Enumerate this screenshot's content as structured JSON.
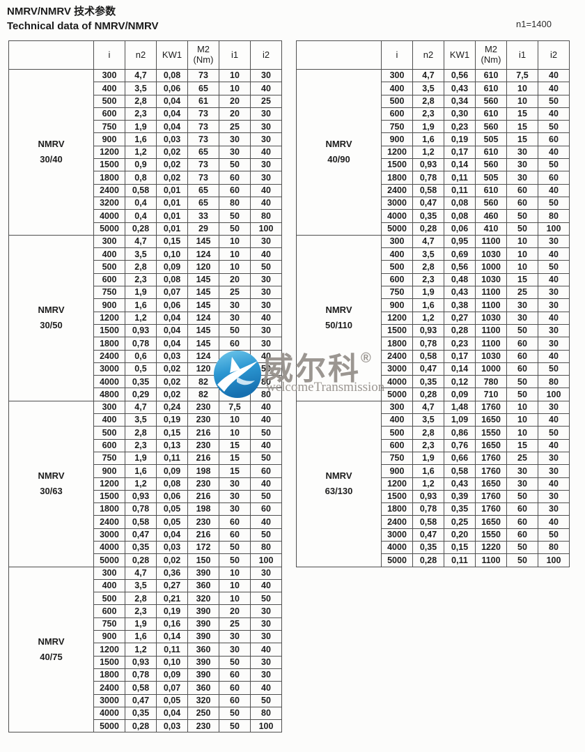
{
  "page": {
    "title_zh": "NMRV/NMRV 技术参数",
    "title_en": "Technical data of NMRV/NMRV",
    "note": "n1=1400"
  },
  "columns": [
    {
      "l1": "i"
    },
    {
      "l1": "n2"
    },
    {
      "l1": "KW1"
    },
    {
      "l1": "M2",
      "l2": "(Nm)"
    },
    {
      "l1": "i1"
    },
    {
      "l1": "i2"
    }
  ],
  "tables": [
    {
      "sections": [
        {
          "model": [
            "NMRV",
            "30/40"
          ],
          "rows": [
            [
              "300",
              "4,7",
              "0,08",
              "73",
              "10",
              "30"
            ],
            [
              "400",
              "3,5",
              "0,06",
              "65",
              "10",
              "40"
            ],
            [
              "500",
              "2,8",
              "0,04",
              "61",
              "20",
              "25"
            ],
            [
              "600",
              "2,3",
              "0,04",
              "73",
              "20",
              "30"
            ],
            [
              "750",
              "1,9",
              "0,04",
              "73",
              "25",
              "30"
            ],
            [
              "900",
              "1,6",
              "0,03",
              "73",
              "30",
              "30"
            ],
            [
              "1200",
              "1,2",
              "0,02",
              "65",
              "30",
              "40"
            ],
            [
              "1500",
              "0,9",
              "0,02",
              "73",
              "50",
              "30"
            ],
            [
              "1800",
              "0,8",
              "0,02",
              "73",
              "60",
              "30"
            ],
            [
              "2400",
              "0,58",
              "0,01",
              "65",
              "60",
              "40"
            ],
            [
              "3200",
              "0,4",
              "0,01",
              "65",
              "80",
              "40"
            ],
            [
              "4000",
              "0,4",
              "0,01",
              "33",
              "50",
              "80"
            ],
            [
              "5000",
              "0,28",
              "0,01",
              "29",
              "50",
              "100"
            ]
          ]
        },
        {
          "model": [
            "NMRV",
            "30/50"
          ],
          "rows": [
            [
              "300",
              "4,7",
              "0,15",
              "145",
              "10",
              "30"
            ],
            [
              "400",
              "3,5",
              "0,10",
              "124",
              "10",
              "40"
            ],
            [
              "500",
              "2,8",
              "0,09",
              "120",
              "10",
              "50"
            ],
            [
              "600",
              "2,3",
              "0,08",
              "145",
              "20",
              "30"
            ],
            [
              "750",
              "1,9",
              "0,07",
              "145",
              "25",
              "30"
            ],
            [
              "900",
              "1,6",
              "0,06",
              "145",
              "30",
              "30"
            ],
            [
              "1200",
              "1,2",
              "0,04",
              "124",
              "30",
              "40"
            ],
            [
              "1500",
              "0,93",
              "0,04",
              "145",
              "50",
              "30"
            ],
            [
              "1800",
              "0,78",
              "0,04",
              "145",
              "60",
              "30"
            ],
            [
              "2400",
              "0,6",
              "0,03",
              "124",
              "60",
              "40"
            ],
            [
              "3000",
              "0,5",
              "0,02",
              "120",
              "60",
              "50"
            ],
            [
              "4000",
              "0,35",
              "0,02",
              "82",
              "50",
              "80"
            ],
            [
              "4800",
              "0,29",
              "0,02",
              "82",
              "60",
              "80"
            ]
          ]
        },
        {
          "model": [
            "NMRV",
            "30/63"
          ],
          "rows": [
            [
              "300",
              "4,7",
              "0,24",
              "230",
              "7,5",
              "40"
            ],
            [
              "400",
              "3,5",
              "0,19",
              "230",
              "10",
              "40"
            ],
            [
              "500",
              "2,8",
              "0,15",
              "216",
              "10",
              "50"
            ],
            [
              "600",
              "2,3",
              "0,13",
              "230",
              "15",
              "40"
            ],
            [
              "750",
              "1,9",
              "0,11",
              "216",
              "15",
              "50"
            ],
            [
              "900",
              "1,6",
              "0,09",
              "198",
              "15",
              "60"
            ],
            [
              "1200",
              "1,2",
              "0,08",
              "230",
              "30",
              "40"
            ],
            [
              "1500",
              "0,93",
              "0,06",
              "216",
              "30",
              "50"
            ],
            [
              "1800",
              "0,78",
              "0,05",
              "198",
              "30",
              "60"
            ],
            [
              "2400",
              "0,58",
              "0,05",
              "230",
              "60",
              "40"
            ],
            [
              "3000",
              "0,47",
              "0,04",
              "216",
              "60",
              "50"
            ],
            [
              "4000",
              "0,35",
              "0,03",
              "172",
              "50",
              "80"
            ],
            [
              "5000",
              "0,28",
              "0,02",
              "150",
              "50",
              "100"
            ]
          ]
        },
        {
          "model": [
            "NMRV",
            "40/75"
          ],
          "rows": [
            [
              "300",
              "4,7",
              "0,36",
              "390",
              "10",
              "30"
            ],
            [
              "400",
              "3,5",
              "0,27",
              "360",
              "10",
              "40"
            ],
            [
              "500",
              "2,8",
              "0,21",
              "320",
              "10",
              "50"
            ],
            [
              "600",
              "2,3",
              "0,19",
              "390",
              "20",
              "30"
            ],
            [
              "750",
              "1,9",
              "0,16",
              "390",
              "25",
              "30"
            ],
            [
              "900",
              "1,6",
              "0,14",
              "390",
              "30",
              "30"
            ],
            [
              "1200",
              "1,2",
              "0,11",
              "360",
              "30",
              "40"
            ],
            [
              "1500",
              "0,93",
              "0,10",
              "390",
              "50",
              "30"
            ],
            [
              "1800",
              "0,78",
              "0,09",
              "390",
              "60",
              "30"
            ],
            [
              "2400",
              "0,58",
              "0,07",
              "360",
              "60",
              "40"
            ],
            [
              "3000",
              "0,47",
              "0,05",
              "320",
              "60",
              "50"
            ],
            [
              "4000",
              "0,35",
              "0,04",
              "250",
              "50",
              "80"
            ],
            [
              "5000",
              "0,28",
              "0,03",
              "230",
              "50",
              "100"
            ]
          ]
        }
      ]
    },
    {
      "sections": [
        {
          "model": [
            "NMRV",
            "40/90"
          ],
          "rows": [
            [
              "300",
              "4,7",
              "0,56",
              "610",
              "7,5",
              "40"
            ],
            [
              "400",
              "3,5",
              "0,43",
              "610",
              "10",
              "40"
            ],
            [
              "500",
              "2,8",
              "0,34",
              "560",
              "10",
              "50"
            ],
            [
              "600",
              "2,3",
              "0,30",
              "610",
              "15",
              "40"
            ],
            [
              "750",
              "1,9",
              "0,23",
              "560",
              "15",
              "50"
            ],
            [
              "900",
              "1,6",
              "0,19",
              "505",
              "15",
              "60"
            ],
            [
              "1200",
              "1,2",
              "0,17",
              "610",
              "30",
              "40"
            ],
            [
              "1500",
              "0,93",
              "0,14",
              "560",
              "30",
              "50"
            ],
            [
              "1800",
              "0,78",
              "0,11",
              "505",
              "30",
              "60"
            ],
            [
              "2400",
              "0,58",
              "0,11",
              "610",
              "60",
              "40"
            ],
            [
              "3000",
              "0,47",
              "0,08",
              "560",
              "60",
              "50"
            ],
            [
              "4000",
              "0,35",
              "0,08",
              "460",
              "50",
              "80"
            ],
            [
              "5000",
              "0,28",
              "0,06",
              "410",
              "50",
              "100"
            ]
          ]
        },
        {
          "model": [
            "NMRV",
            "50/110"
          ],
          "rows": [
            [
              "300",
              "4,7",
              "0,95",
              "1100",
              "10",
              "30"
            ],
            [
              "400",
              "3,5",
              "0,69",
              "1030",
              "10",
              "40"
            ],
            [
              "500",
              "2,8",
              "0,56",
              "1000",
              "10",
              "50"
            ],
            [
              "600",
              "2,3",
              "0,48",
              "1030",
              "15",
              "40"
            ],
            [
              "750",
              "1,9",
              "0,43",
              "1100",
              "25",
              "30"
            ],
            [
              "900",
              "1,6",
              "0,38",
              "1100",
              "30",
              "30"
            ],
            [
              "1200",
              "1,2",
              "0,27",
              "1030",
              "30",
              "40"
            ],
            [
              "1500",
              "0,93",
              "0,28",
              "1100",
              "50",
              "30"
            ],
            [
              "1800",
              "0,78",
              "0,23",
              "1100",
              "60",
              "30"
            ],
            [
              "2400",
              "0,58",
              "0,17",
              "1030",
              "60",
              "40"
            ],
            [
              "3000",
              "0,47",
              "0,14",
              "1000",
              "60",
              "50"
            ],
            [
              "4000",
              "0,35",
              "0,12",
              "780",
              "50",
              "80"
            ],
            [
              "5000",
              "0,28",
              "0,09",
              "710",
              "50",
              "100"
            ]
          ]
        },
        {
          "model": [
            "NMRV",
            "63/130"
          ],
          "rows": [
            [
              "300",
              "4,7",
              "1,48",
              "1760",
              "10",
              "30"
            ],
            [
              "400",
              "3,5",
              "1,09",
              "1650",
              "10",
              "40"
            ],
            [
              "500",
              "2,8",
              "0,86",
              "1550",
              "10",
              "50"
            ],
            [
              "600",
              "2,3",
              "0,76",
              "1650",
              "15",
              "40"
            ],
            [
              "750",
              "1,9",
              "0,66",
              "1760",
              "25",
              "30"
            ],
            [
              "900",
              "1,6",
              "0,58",
              "1760",
              "30",
              "30"
            ],
            [
              "1200",
              "1,2",
              "0,43",
              "1650",
              "30",
              "40"
            ],
            [
              "1500",
              "0,93",
              "0,39",
              "1760",
              "50",
              "30"
            ],
            [
              "1800",
              "0,78",
              "0,35",
              "1760",
              "60",
              "30"
            ],
            [
              "2400",
              "0,58",
              "0,25",
              "1650",
              "60",
              "40"
            ],
            [
              "3000",
              "0,47",
              "0,20",
              "1550",
              "60",
              "50"
            ],
            [
              "4000",
              "0,35",
              "0,15",
              "1220",
              "50",
              "80"
            ],
            [
              "5000",
              "0,28",
              "0,11",
              "1100",
              "50",
              "100"
            ]
          ]
        }
      ]
    }
  ],
  "watermark": {
    "logo": "welcome-transmission-logo",
    "text_zh": "威尔科",
    "reg": "®",
    "text_en": "welcomeTransmission",
    "logo_color_top": "#6ec6ea",
    "logo_color_bottom": "#1670b0",
    "text_color": "#96908b"
  }
}
